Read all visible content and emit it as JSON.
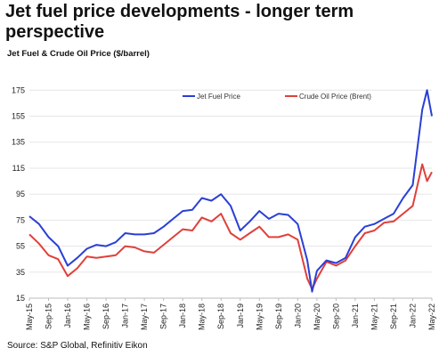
{
  "title": "Jet fuel price developments - longer term perspective",
  "subtitle": "Jet Fuel & Crude Oil Price ($/barrel)",
  "source": "Source: S&P Global, Refinitiv Eikon",
  "chart_data": {
    "type": "line",
    "title": "Jet Fuel & Crude Oil Price ($/barrel)",
    "xlabel": "",
    "ylabel": "",
    "ylim": [
      15,
      180
    ],
    "yticks": [
      15,
      35,
      55,
      75,
      95,
      115,
      135,
      155,
      175
    ],
    "xticks": [
      "May-15",
      "Sep-15",
      "Jan-16",
      "May-16",
      "Sep-16",
      "Jan-17",
      "May-17",
      "Sep-17",
      "Jan-18",
      "May-18",
      "Sep-18",
      "Jan-19",
      "May-19",
      "Sep-19",
      "Jan-20",
      "May-20",
      "Sep-20",
      "Jan-21",
      "May-21",
      "Sep-21",
      "Jan-22",
      "May-22"
    ],
    "grid": "horizontal",
    "legend_position": "top",
    "x": [
      "May-15",
      "Jul-15",
      "Sep-15",
      "Nov-15",
      "Jan-16",
      "Mar-16",
      "May-16",
      "Jul-16",
      "Sep-16",
      "Nov-16",
      "Jan-17",
      "Mar-17",
      "May-17",
      "Jul-17",
      "Sep-17",
      "Nov-17",
      "Jan-18",
      "Mar-18",
      "May-18",
      "Jul-18",
      "Sep-18",
      "Nov-18",
      "Jan-19",
      "Mar-19",
      "May-19",
      "Jul-19",
      "Sep-19",
      "Nov-19",
      "Jan-20",
      "Mar-20",
      "Apr-20",
      "May-20",
      "Jul-20",
      "Sep-20",
      "Nov-20",
      "Jan-21",
      "Mar-21",
      "May-21",
      "Jul-21",
      "Sep-21",
      "Nov-21",
      "Jan-22",
      "Mar-22",
      "Apr-22",
      "May-22"
    ],
    "series": [
      {
        "name": "Jet Fuel Price",
        "color": "#2a3fd6",
        "values": [
          78,
          72,
          62,
          55,
          40,
          46,
          53,
          56,
          55,
          58,
          65,
          64,
          64,
          65,
          70,
          76,
          82,
          83,
          92,
          90,
          95,
          86,
          67,
          74,
          82,
          76,
          80,
          79,
          72,
          44,
          20,
          36,
          44,
          42,
          46,
          62,
          70,
          72,
          76,
          80,
          92,
          102,
          160,
          175,
          155
        ]
      },
      {
        "name": "Crude Oil Price (Brent)",
        "color": "#e0403a",
        "values": [
          64,
          57,
          48,
          45,
          32,
          38,
          47,
          46,
          47,
          48,
          55,
          54,
          51,
          50,
          56,
          62,
          68,
          67,
          77,
          74,
          80,
          65,
          60,
          65,
          70,
          62,
          62,
          64,
          60,
          30,
          22,
          30,
          43,
          40,
          44,
          55,
          65,
          67,
          73,
          74,
          80,
          86,
          118,
          105,
          112
        ]
      }
    ]
  }
}
